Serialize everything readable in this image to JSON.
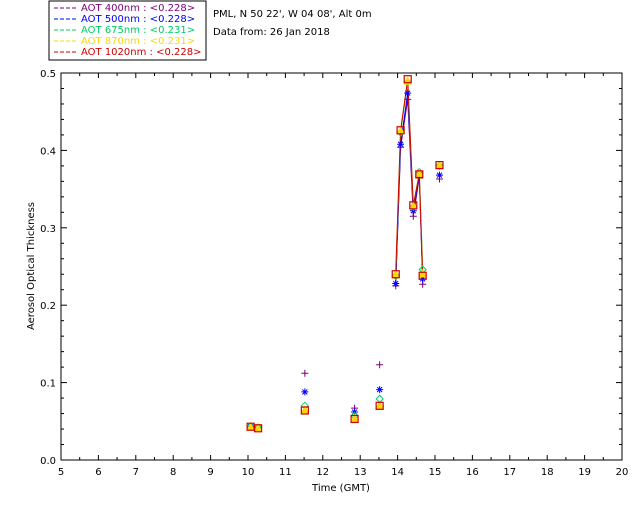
{
  "chart_data": {
    "type": "scatter",
    "info_lines": [
      "PML, N 50 22', W 04 08', Alt 0m",
      "Data from: 26 Jan 2018"
    ],
    "xlabel": "Time (GMT)",
    "ylabel": "Aerosol Optical Thickness",
    "xlim": [
      5,
      20
    ],
    "ylim": [
      0,
      0.5
    ],
    "xticks": [
      "5",
      "6",
      "7",
      "8",
      "9",
      "10",
      "11",
      "12",
      "13",
      "14",
      "15",
      "16",
      "17",
      "18",
      "19",
      "20"
    ],
    "yticks": [
      "0.0",
      "0.1",
      "0.2",
      "0.3",
      "0.4",
      "0.5"
    ],
    "grid": false,
    "legend_position": "top-left, outside plot",
    "series": [
      {
        "name": "AOT  400nm : <0.228>",
        "color": "#7a007a",
        "marker": "plus",
        "x": [
          10.07,
          10.27,
          11.52,
          12.85,
          13.52,
          13.95,
          14.08,
          14.27,
          14.42,
          14.58,
          14.67,
          15.12
        ],
        "y": [
          0.043,
          0.042,
          0.112,
          0.067,
          0.123,
          0.225,
          0.404,
          0.466,
          0.315,
          0.365,
          0.227,
          0.363
        ]
      },
      {
        "name": "AOT  500nm : <0.228>",
        "color": "#0000ff",
        "marker": "asterisk",
        "x": [
          10.07,
          10.27,
          11.52,
          12.85,
          13.52,
          13.95,
          14.08,
          14.27,
          14.42,
          14.58,
          14.67,
          15.12
        ],
        "y": [
          0.043,
          0.042,
          0.088,
          0.062,
          0.091,
          0.228,
          0.408,
          0.474,
          0.322,
          0.369,
          0.234,
          0.368
        ]
      },
      {
        "name": "AOT  675nm : <0.231>",
        "color": "#00cc66",
        "marker": "diamond",
        "x": [
          10.07,
          10.27,
          11.52,
          12.85,
          13.52,
          13.95,
          14.08,
          14.27,
          14.42,
          14.58,
          14.67,
          15.12
        ],
        "y": [
          0.043,
          0.042,
          0.07,
          0.057,
          0.079,
          0.238,
          0.423,
          0.488,
          0.327,
          0.372,
          0.246,
          0.38
        ]
      },
      {
        "name": "AOT  870nm : <0.231>",
        "color": "#ffd700",
        "marker": "triangle",
        "x": [
          10.07,
          10.27,
          11.52,
          12.85,
          13.52,
          13.95,
          14.08,
          14.27,
          14.42,
          14.58,
          14.67,
          15.12
        ],
        "y": [
          0.043,
          0.042,
          0.065,
          0.054,
          0.071,
          0.24,
          0.426,
          0.49,
          0.329,
          0.371,
          0.241,
          0.381
        ]
      },
      {
        "name": "AOT 1020nm : <0.228>",
        "color": "#cc0000",
        "marker": "square",
        "x": [
          10.07,
          10.27,
          11.52,
          12.85,
          13.52,
          13.95,
          14.08,
          14.27,
          14.42,
          14.58,
          14.67,
          15.12
        ],
        "y": [
          0.043,
          0.041,
          0.064,
          0.053,
          0.07,
          0.24,
          0.426,
          0.492,
          0.329,
          0.369,
          0.238,
          0.381
        ]
      }
    ]
  }
}
